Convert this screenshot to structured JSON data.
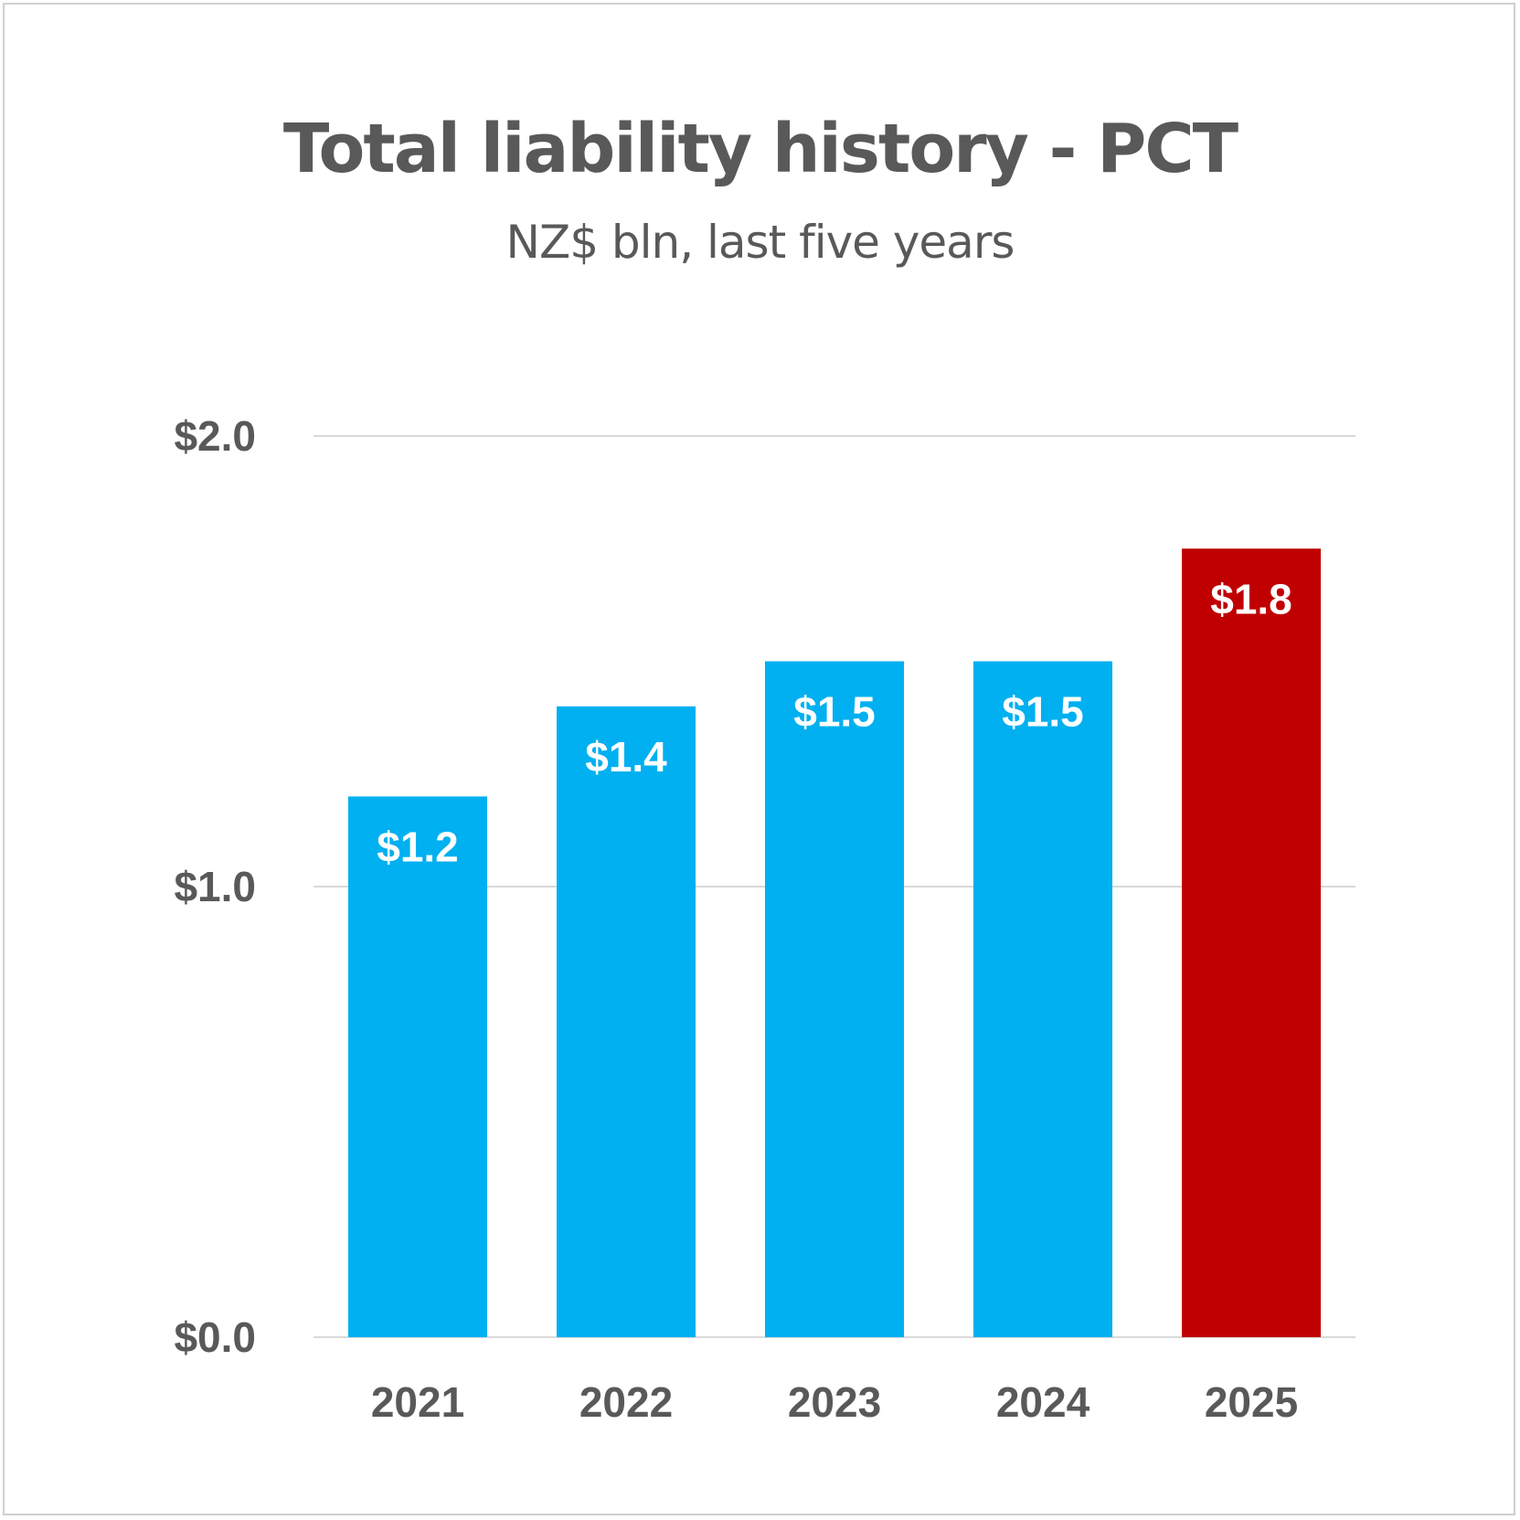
{
  "chart_data": {
    "type": "bar",
    "title": "Total liability history - PCT",
    "subtitle": "NZ$ bln, last five years",
    "categories": [
      "2021",
      "2022",
      "2023",
      "2024",
      "2025"
    ],
    "values": [
      1.2,
      1.4,
      1.5,
      1.5,
      1.75
    ],
    "data_labels": [
      "$1.2",
      "$1.4",
      "$1.5",
      "$1.5",
      "$1.8"
    ],
    "bar_colors": [
      "#00B0F0",
      "#00B0F0",
      "#00B0F0",
      "#00B0F0",
      "#C00000"
    ],
    "ylim": [
      0,
      2
    ],
    "yticks": [
      {
        "value": 0,
        "label": "$0.0"
      },
      {
        "value": 1,
        "label": "$1.0"
      },
      {
        "value": 2,
        "label": "$2.0"
      }
    ],
    "grid": true,
    "gridline_color": "#D9D9D9",
    "text_color": "#595959",
    "xlabel": "",
    "ylabel": ""
  }
}
